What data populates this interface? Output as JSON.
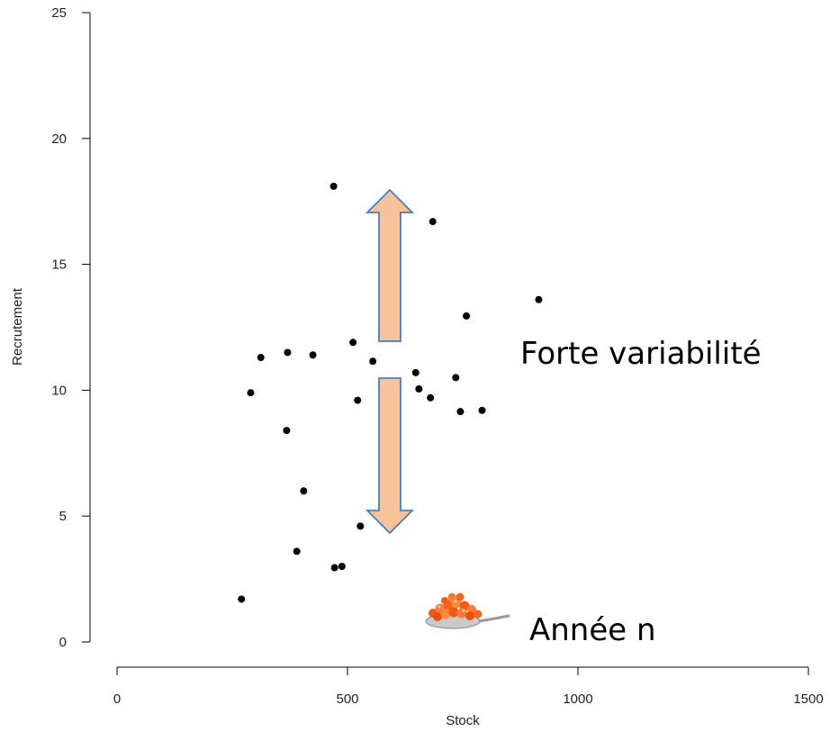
{
  "chart_data": {
    "type": "scatter",
    "xlabel": "Stock",
    "ylabel": "Recrutement",
    "xlim": [
      0,
      1500
    ],
    "ylim": [
      0,
      25
    ],
    "x_ticks": [
      0,
      500,
      1000,
      1500
    ],
    "y_ticks": [
      0,
      5,
      10,
      15,
      20,
      25
    ],
    "grid": false,
    "points": [
      {
        "x": 270,
        "y": 1.7
      },
      {
        "x": 290,
        "y": 9.9
      },
      {
        "x": 312,
        "y": 11.3
      },
      {
        "x": 368,
        "y": 8.4
      },
      {
        "x": 370,
        "y": 11.5
      },
      {
        "x": 390,
        "y": 3.6
      },
      {
        "x": 405,
        "y": 6.0
      },
      {
        "x": 425,
        "y": 11.4
      },
      {
        "x": 470,
        "y": 18.1
      },
      {
        "x": 472,
        "y": 2.95
      },
      {
        "x": 488,
        "y": 3.0
      },
      {
        "x": 512,
        "y": 11.9
      },
      {
        "x": 522,
        "y": 9.6
      },
      {
        "x": 528,
        "y": 4.6
      },
      {
        "x": 555,
        "y": 11.15
      },
      {
        "x": 648,
        "y": 10.7
      },
      {
        "x": 655,
        "y": 10.05
      },
      {
        "x": 680,
        "y": 9.7
      },
      {
        "x": 685,
        "y": 16.7
      },
      {
        "x": 735,
        "y": 10.5
      },
      {
        "x": 745,
        "y": 9.15
      },
      {
        "x": 758,
        "y": 12.95
      },
      {
        "x": 792,
        "y": 9.2
      },
      {
        "x": 915,
        "y": 13.6
      }
    ],
    "annotations": [
      {
        "text": "Forte variabilité"
      },
      {
        "text": "Année n"
      }
    ],
    "arrow_color": "#F8C29A",
    "arrow_border_color": "#4A7EBB",
    "point_color": "#000000"
  }
}
